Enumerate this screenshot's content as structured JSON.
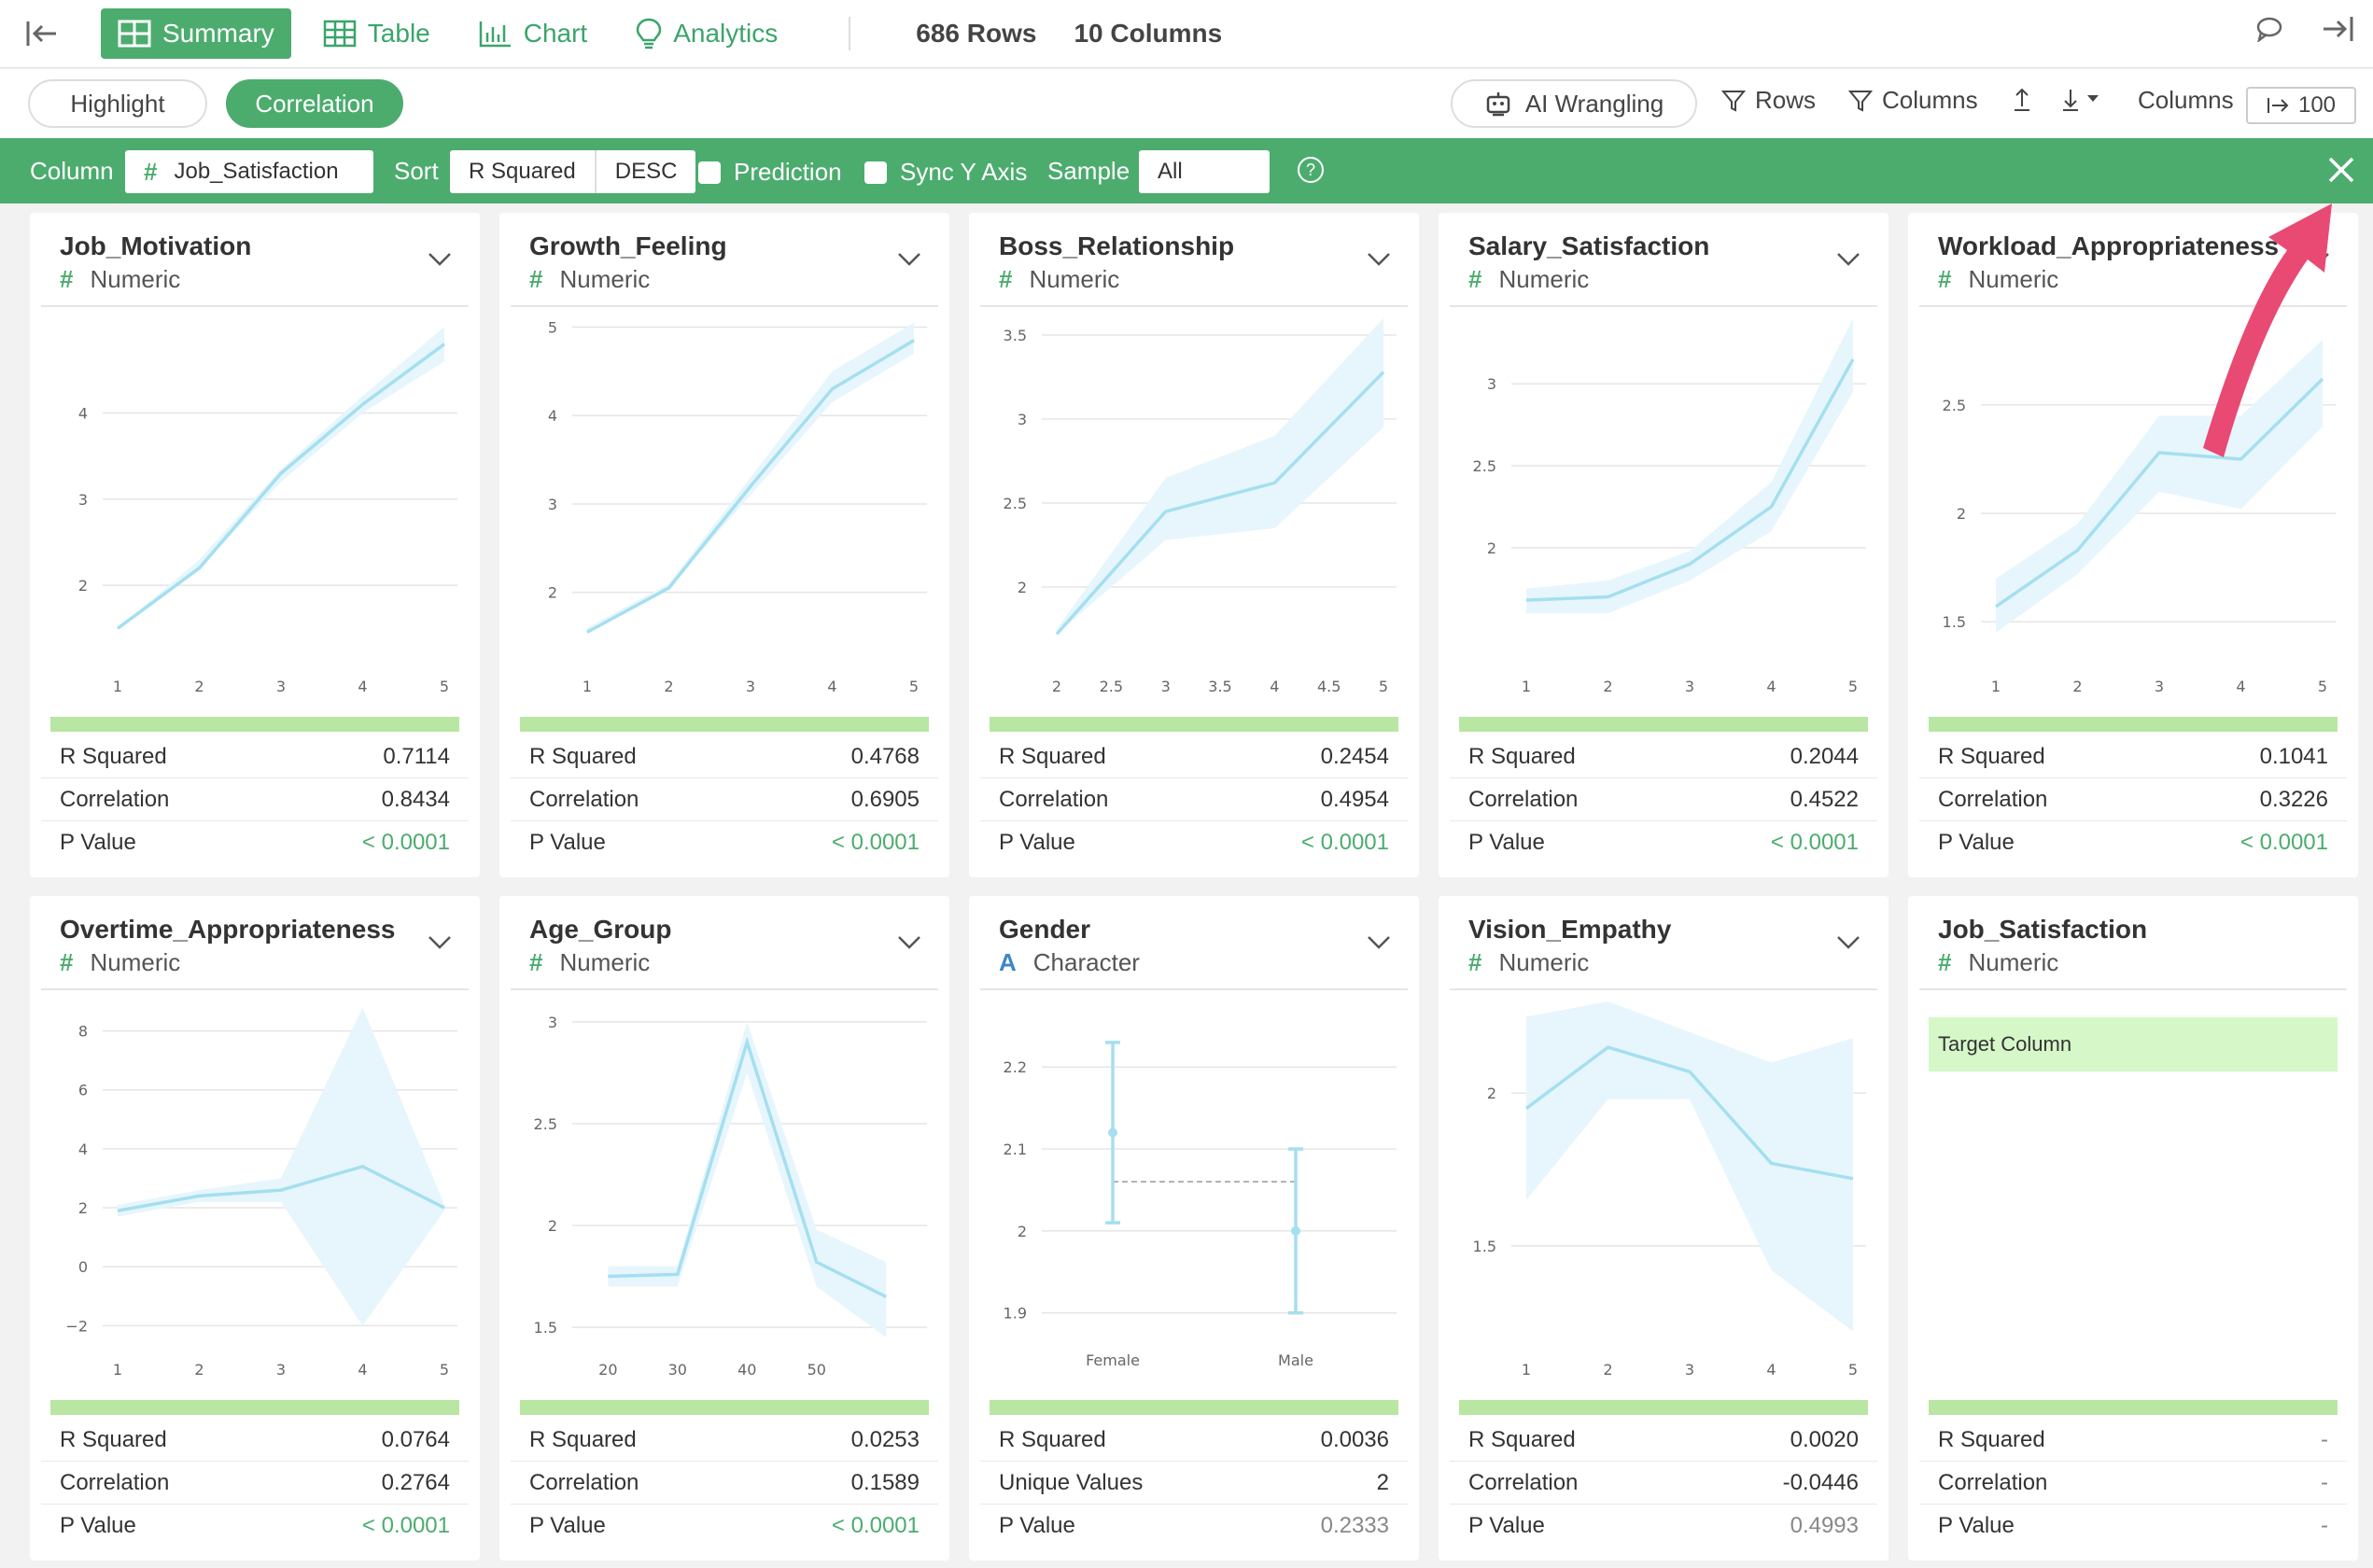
{
  "topbar": {
    "tabs": [
      {
        "label": "Summary",
        "icon": "summary-grid-icon"
      },
      {
        "label": "Table",
        "icon": "table-icon"
      },
      {
        "label": "Chart",
        "icon": "bar-chart-icon"
      },
      {
        "label": "Analytics",
        "icon": "lightbulb-icon"
      }
    ],
    "rows_count": "686",
    "rows_label": "Rows",
    "cols_count": "10",
    "cols_label": "Columns"
  },
  "toolbar": {
    "highlight": "Highlight",
    "correlation": "Correlation",
    "ai_wrangling": "AI Wrangling",
    "rows": "Rows",
    "columns": "Columns",
    "columns_label": "Columns",
    "columns_limit": "100"
  },
  "filterbar": {
    "column_label": "Column",
    "column_value": "Job_Satisfaction",
    "sort_label": "Sort",
    "sort_by": "R Squared",
    "sort_order": "DESC",
    "prediction": "Prediction",
    "sync_y": "Sync Y Axis",
    "sample_label": "Sample",
    "sample_value": "All",
    "help": "?"
  },
  "colors": {
    "accent": "#4cac6e",
    "line": "#a5dff0",
    "band": "#e7f6fc",
    "pvalue": "#4cac6e",
    "annotation_arrow": "#e84a73"
  },
  "cards": [
    {
      "name": "Job_Motivation",
      "type": "Numeric",
      "stats": [
        [
          "R Squared",
          "0.7114"
        ],
        [
          "Correlation",
          "0.8434"
        ],
        [
          "P Value",
          "< 0.0001"
        ]
      ]
    },
    {
      "name": "Growth_Feeling",
      "type": "Numeric",
      "stats": [
        [
          "R Squared",
          "0.4768"
        ],
        [
          "Correlation",
          "0.6905"
        ],
        [
          "P Value",
          "< 0.0001"
        ]
      ]
    },
    {
      "name": "Boss_Relationship",
      "type": "Numeric",
      "stats": [
        [
          "R Squared",
          "0.2454"
        ],
        [
          "Correlation",
          "0.4954"
        ],
        [
          "P Value",
          "< 0.0001"
        ]
      ]
    },
    {
      "name": "Salary_Satisfaction",
      "type": "Numeric",
      "stats": [
        [
          "R Squared",
          "0.2044"
        ],
        [
          "Correlation",
          "0.4522"
        ],
        [
          "P Value",
          "< 0.0001"
        ]
      ]
    },
    {
      "name": "Workload_Appropriateness",
      "type": "Numeric",
      "stats": [
        [
          "R Squared",
          "0.1041"
        ],
        [
          "Correlation",
          "0.3226"
        ],
        [
          "P Value",
          "< 0.0001"
        ]
      ]
    },
    {
      "name": "Overtime_Appropriateness",
      "type": "Numeric",
      "stats": [
        [
          "R Squared",
          "0.0764"
        ],
        [
          "Correlation",
          "0.2764"
        ],
        [
          "P Value",
          "< 0.0001"
        ]
      ]
    },
    {
      "name": "Age_Group",
      "type": "Numeric",
      "stats": [
        [
          "R Squared",
          "0.0253"
        ],
        [
          "Correlation",
          "0.1589"
        ],
        [
          "P Value",
          "< 0.0001"
        ]
      ]
    },
    {
      "name": "Gender",
      "type": "Character",
      "stats": [
        [
          "R Squared",
          "0.0036"
        ],
        [
          "Unique Values",
          "2"
        ],
        [
          "P Value",
          "0.2333"
        ]
      ]
    },
    {
      "name": "Vision_Empathy",
      "type": "Numeric",
      "stats": [
        [
          "R Squared",
          "0.0020"
        ],
        [
          "Correlation",
          "-0.0446"
        ],
        [
          "P Value",
          "0.4993"
        ]
      ]
    },
    {
      "name": "Job_Satisfaction",
      "type": "Numeric",
      "target_label": "Target Column",
      "stats": [
        [
          "R Squared",
          "-"
        ],
        [
          "Correlation",
          "-"
        ],
        [
          "P Value",
          "-"
        ]
      ]
    }
  ],
  "chart_data": [
    {
      "type": "line",
      "x": [
        1,
        2,
        3,
        4,
        5
      ],
      "y": [
        1.5,
        2.2,
        3.3,
        4.1,
        4.8
      ],
      "lower": [
        1.5,
        2.2,
        3.2,
        4.0,
        4.6
      ],
      "upper": [
        1.5,
        2.3,
        3.35,
        4.2,
        5.0
      ],
      "ylim": [
        1.2,
        5.1
      ],
      "yticks": [
        2,
        3,
        4
      ],
      "xticks": [
        "1",
        "2",
        "3",
        "4",
        "5"
      ]
    },
    {
      "type": "line",
      "x": [
        1,
        2,
        3,
        4,
        5
      ],
      "y": [
        1.55,
        2.05,
        3.2,
        4.3,
        4.85
      ],
      "lower": [
        1.55,
        2.05,
        3.1,
        4.15,
        4.7
      ],
      "upper": [
        1.6,
        2.1,
        3.3,
        4.5,
        5.05
      ],
      "ylim": [
        1.3,
        5.1
      ],
      "yticks": [
        2,
        3,
        4,
        5
      ],
      "xticks": [
        "1",
        "2",
        "3",
        "4",
        "5"
      ]
    },
    {
      "type": "line",
      "x": [
        2,
        3,
        4,
        5
      ],
      "y": [
        1.72,
        2.45,
        2.62,
        3.28
      ],
      "lower": [
        1.72,
        2.28,
        2.35,
        2.95
      ],
      "upper": [
        1.75,
        2.65,
        2.9,
        3.6
      ],
      "ylim": [
        1.6,
        3.6
      ],
      "yticks": [
        2,
        2.5,
        3,
        3.5
      ],
      "xticks": [
        "2",
        "2.5",
        "3",
        "3.5",
        "4",
        "4.5",
        "5"
      ],
      "xlim": [
        2,
        5
      ]
    },
    {
      "type": "line",
      "x": [
        1,
        2,
        3,
        4,
        5
      ],
      "y": [
        1.68,
        1.7,
        1.9,
        2.25,
        3.15
      ],
      "lower": [
        1.6,
        1.6,
        1.8,
        2.1,
        2.95
      ],
      "upper": [
        1.75,
        1.8,
        1.98,
        2.4,
        3.4
      ],
      "ylim": [
        1.35,
        3.4
      ],
      "yticks": [
        2,
        2.5,
        3
      ],
      "xticks": [
        "1",
        "2",
        "3",
        "4",
        "5"
      ]
    },
    {
      "type": "line",
      "x": [
        1,
        2,
        3,
        4,
        5
      ],
      "y": [
        1.57,
        1.83,
        2.28,
        2.25,
        2.62
      ],
      "lower": [
        1.45,
        1.72,
        2.1,
        2.02,
        2.4
      ],
      "upper": [
        1.7,
        1.95,
        2.45,
        2.45,
        2.8
      ],
      "ylim": [
        1.35,
        2.9
      ],
      "yticks": [
        1.5,
        2,
        2.5
      ],
      "xticks": [
        "1",
        "2",
        "3",
        "4",
        "5"
      ]
    },
    {
      "type": "line",
      "x": [
        1,
        2,
        3,
        4,
        5
      ],
      "y": [
        1.9,
        2.4,
        2.6,
        3.4,
        2.0
      ],
      "lower": [
        1.7,
        2.2,
        2.2,
        -2.0,
        1.9
      ],
      "upper": [
        2.1,
        2.6,
        3.0,
        8.8,
        2.1
      ],
      "ylim": [
        -2.4,
        9.0
      ],
      "yticks": [
        -2,
        0,
        2,
        4,
        6,
        8
      ],
      "ytick_labels": [
        "−2",
        "0",
        "2",
        "4",
        "6",
        "8"
      ],
      "xticks": [
        "1",
        "2",
        "3",
        "4",
        "5"
      ]
    },
    {
      "type": "line",
      "x": [
        20,
        30,
        40,
        50,
        60
      ],
      "y": [
        1.75,
        1.76,
        2.9,
        1.82,
        1.65
      ],
      "lower": [
        1.7,
        1.7,
        2.75,
        1.7,
        1.45
      ],
      "upper": [
        1.8,
        1.8,
        3.0,
        1.98,
        1.82
      ],
      "ylim": [
        1.45,
        3.1
      ],
      "yticks": [
        1.5,
        2,
        2.5,
        3
      ],
      "xticks": [
        "20",
        "30",
        "40",
        "50"
      ],
      "xlim": [
        17,
        64
      ]
    },
    {
      "type": "errorbar",
      "categories": [
        "Female",
        "Male"
      ],
      "y": [
        2.12,
        2.0
      ],
      "lower": [
        2.01,
        1.9
      ],
      "upper": [
        2.23,
        2.1
      ],
      "mean_line": 2.06,
      "ylim": [
        1.87,
        2.28
      ],
      "yticks": [
        1.9,
        2,
        2.1,
        2.2
      ]
    },
    {
      "type": "line",
      "x": [
        1,
        2,
        3,
        4,
        5
      ],
      "y": [
        1.95,
        2.15,
        2.07,
        1.77,
        1.72
      ],
      "lower": [
        1.65,
        1.98,
        1.98,
        1.42,
        1.22
      ],
      "upper": [
        2.25,
        2.3,
        2.2,
        2.1,
        2.18
      ],
      "ylim": [
        1.2,
        2.3
      ],
      "yticks": [
        1.5,
        2
      ],
      "xticks": [
        "1",
        "2",
        "3",
        "4",
        "5"
      ]
    }
  ]
}
